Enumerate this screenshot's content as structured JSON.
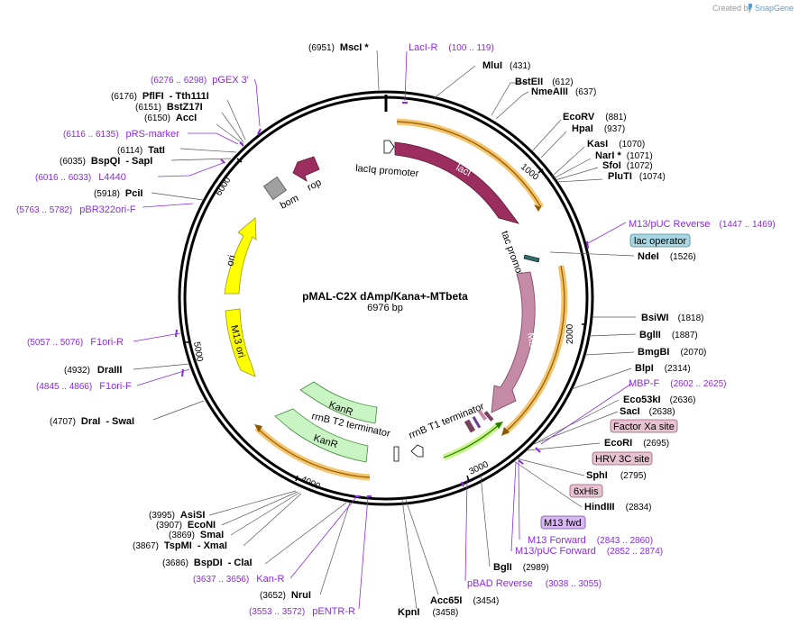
{
  "credit": {
    "prefix": "Created by",
    "brand": "SnapGene"
  },
  "plasmid": {
    "name": "pMAL-C2X dAmp/Kana+-MTbeta",
    "size": "6976 bp"
  },
  "ticks": [
    "1000",
    "2000",
    "3000",
    "4000",
    "5000",
    "6000"
  ],
  "features": {
    "laciq_promoter": "lacIq promoter",
    "laci": "lacI",
    "tac_promoter": "tac promoter",
    "mbp": "MBP",
    "rrnb_t1": "rrnB T1 terminator",
    "rrnb_t2": "rrnB T2 terminator",
    "kanr_1": "KanR",
    "kanr_2": "KanR",
    "m13_ori": "M13 ori",
    "ori": "ori",
    "bom": "bom",
    "rop": "rop"
  },
  "colors": {
    "laci": "#9b2d5f",
    "mbp": "#c58aa6",
    "kanr": "#c9f5c4",
    "ori": "#ffff00",
    "promoter": "#ffffff",
    "primer": "#8a2be2",
    "orf": "#f5c36b",
    "bom": "#a0a0a0"
  },
  "sites_left": [
    {
      "pos": "(6951)",
      "name": "MscI *"
    },
    {
      "pos": "(6176)",
      "name": "PflFI",
      "alt": "- Tth111I"
    },
    {
      "pos": "(6151)",
      "name": "BstZ17I"
    },
    {
      "pos": "(6150)",
      "name": "AccI"
    },
    {
      "pos": "(6114)",
      "name": "TatI"
    },
    {
      "pos": "(6035)",
      "name": "BspQI",
      "alt": "- SapI"
    },
    {
      "pos": "(5918)",
      "name": "PciI"
    },
    {
      "pos": "(4932)",
      "name": "DraIII"
    },
    {
      "pos": "(4707)",
      "name": "DraI",
      "alt": "- SwaI"
    },
    {
      "pos": "(3995)",
      "name": "AsiSI"
    },
    {
      "pos": "(3907)",
      "name": "EcoNI"
    },
    {
      "pos": "(3869)",
      "name": "SmaI"
    },
    {
      "pos": "(3867)",
      "name": "TspMI",
      "alt": "- XmaI"
    },
    {
      "pos": "(3686)",
      "name": "BspDI",
      "alt": "- ClaI"
    },
    {
      "pos": "(3652)",
      "name": "NruI"
    }
  ],
  "sites_right": [
    {
      "name": "MluI",
      "pos": "(431)"
    },
    {
      "name": "BstEII",
      "pos": "(612)"
    },
    {
      "name": "NmeAIII",
      "pos": "(637)"
    },
    {
      "name": "EcoRV",
      "pos": "(881)"
    },
    {
      "name": "HpaI",
      "pos": "(937)"
    },
    {
      "name": "KasI",
      "pos": "(1070)"
    },
    {
      "name": "NarI *",
      "pos": "(1071)"
    },
    {
      "name": "SfoI",
      "pos": "(1072)"
    },
    {
      "name": "PluTI",
      "pos": "(1074)"
    },
    {
      "name": "NdeI",
      "pos": "(1526)"
    },
    {
      "name": "BsiWI",
      "pos": "(1818)"
    },
    {
      "name": "BglII",
      "pos": "(1887)"
    },
    {
      "name": "BmgBI",
      "pos": "(2070)"
    },
    {
      "name": "BlpI",
      "pos": "(2314)"
    },
    {
      "name": "Eco53kI",
      "pos": "(2636)"
    },
    {
      "name": "SacI",
      "pos": "(2638)"
    },
    {
      "name": "EcoRI",
      "pos": "(2695)"
    },
    {
      "name": "SphI",
      "pos": "(2795)"
    },
    {
      "name": "HindIII",
      "pos": "(2834)"
    },
    {
      "name": "BglI",
      "pos": "(2989)"
    },
    {
      "name": "Acc65I",
      "pos": "(3454)"
    },
    {
      "name": "KpnI",
      "pos": "(3458)"
    }
  ],
  "primers": [
    {
      "name": "LacI-R",
      "range": "(100 .. 119)"
    },
    {
      "name": "pGEX 3'",
      "range": "(6276 .. 6298)"
    },
    {
      "name": "pRS-marker",
      "range": "(6116 .. 6135)"
    },
    {
      "name": "L4440",
      "range": "(6016 .. 6033)"
    },
    {
      "name": "pBR322ori-F",
      "range": "(5763 .. 5782)"
    },
    {
      "name": "F1ori-R",
      "range": "(5057 .. 5076)"
    },
    {
      "name": "F1ori-F",
      "range": "(4845 .. 4866)"
    },
    {
      "name": "Kan-R",
      "range": "(3637 .. 3656)"
    },
    {
      "name": "pENTR-R",
      "range": "(3553 .. 3572)"
    },
    {
      "name": "M13/pUC Reverse",
      "range": "(1447 .. 1469)"
    },
    {
      "name": "MBP-F",
      "range": "(2602 .. 2625)"
    },
    {
      "name": "M13 Forward",
      "range": "(2843 .. 2860)"
    },
    {
      "name": "M13/pUC Forward",
      "range": "(2852 .. 2874)"
    },
    {
      "name": "pBAD Reverse",
      "range": "(3038 .. 3055)"
    }
  ],
  "badges": {
    "lac_operator": "lac operator",
    "factor_xa": "Factor Xa site",
    "hrv_3c": "HRV 3C site",
    "his6": "6xHis",
    "m13_fwd": "M13 fwd"
  }
}
